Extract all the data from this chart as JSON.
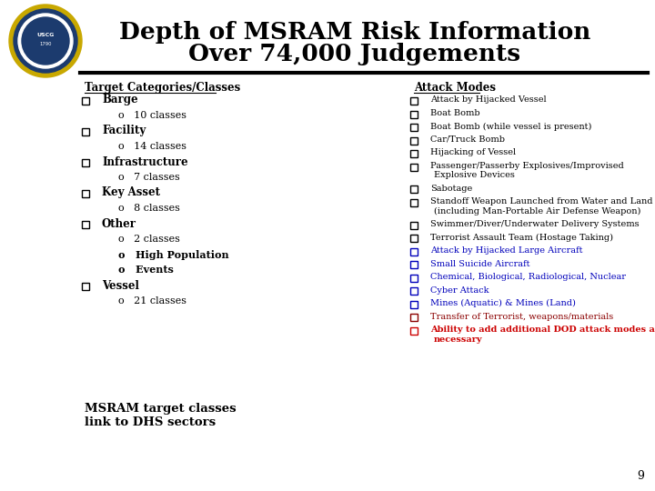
{
  "title_line1": "Depth of MSRAM Risk Information",
  "title_line2": "Over 74,000 Judgements",
  "section1_header": "Target Categories/Classes",
  "section2_header": "Attack Modes",
  "left_items": [
    {
      "level": 0,
      "text": "Barge",
      "bold": true
    },
    {
      "level": 1,
      "text": "o   10 classes",
      "bold": false
    },
    {
      "level": 0,
      "text": "Facility",
      "bold": true
    },
    {
      "level": 1,
      "text": "o   14 classes",
      "bold": false
    },
    {
      "level": 0,
      "text": "Infrastructure",
      "bold": true
    },
    {
      "level": 1,
      "text": "o   7 classes",
      "bold": false
    },
    {
      "level": 0,
      "text": "Key Asset",
      "bold": true
    },
    {
      "level": 1,
      "text": "o   8 classes",
      "bold": false
    },
    {
      "level": 0,
      "text": "Other",
      "bold": true
    },
    {
      "level": 1,
      "text": "o   2 classes",
      "bold": false
    },
    {
      "level": 1,
      "text": "o   High Population",
      "bold": true
    },
    {
      "level": 1,
      "text": "o   Events",
      "bold": true
    },
    {
      "level": 0,
      "text": "Vessel",
      "bold": true
    },
    {
      "level": 1,
      "text": "o   21 classes",
      "bold": false
    }
  ],
  "right_items": [
    {
      "lines": [
        "Attack by Hijacked Vessel"
      ],
      "color": "black",
      "bold": false
    },
    {
      "lines": [
        "Boat Bomb"
      ],
      "color": "black",
      "bold": false
    },
    {
      "lines": [
        "Boat Bomb (while vessel is present)"
      ],
      "color": "black",
      "bold": false
    },
    {
      "lines": [
        "Car/Truck Bomb"
      ],
      "color": "black",
      "bold": false
    },
    {
      "lines": [
        "Hijacking of Vessel"
      ],
      "color": "black",
      "bold": false
    },
    {
      "lines": [
        "Passenger/Passerby Explosives/Improvised",
        "Explosive Devices"
      ],
      "color": "black",
      "bold": false
    },
    {
      "lines": [
        "Sabotage"
      ],
      "color": "black",
      "bold": false
    },
    {
      "lines": [
        "Standoff Weapon Launched from Water and Land",
        "(including Man-Portable Air Defense Weapon)"
      ],
      "color": "black",
      "bold": false
    },
    {
      "lines": [
        "Swimmer/Diver/Underwater Delivery Systems"
      ],
      "color": "black",
      "bold": false
    },
    {
      "lines": [
        "Terrorist Assault Team (Hostage Taking)"
      ],
      "color": "black",
      "bold": false
    },
    {
      "lines": [
        "Attack by Hijacked Large Aircraft"
      ],
      "color": "#0000BB",
      "bold": false
    },
    {
      "lines": [
        "Small Suicide Aircraft"
      ],
      "color": "#0000BB",
      "bold": false
    },
    {
      "lines": [
        "Chemical, Biological, Radiological, Nuclear"
      ],
      "color": "#0000BB",
      "bold": false
    },
    {
      "lines": [
        "Cyber Attack"
      ],
      "color": "#0000BB",
      "bold": false
    },
    {
      "lines": [
        "Mines (Aquatic) & Mines (Land)"
      ],
      "color": "#0000BB",
      "bold": false
    },
    {
      "lines": [
        "Transfer of Terrorist, weapons/materials"
      ],
      "color": "#8B0000",
      "bold": false
    },
    {
      "lines": [
        "Ability to add additional DOD attack modes as",
        "necessary"
      ],
      "color": "#CC0000",
      "bold": true
    }
  ],
  "footer_text_line1": "MSRAM target classes",
  "footer_text_line2": "link to DHS sectors",
  "page_number": "9",
  "bg_color": "#FFFFFF",
  "title_color": "#000000",
  "header_color": "#000000",
  "separator_color": "#000000"
}
